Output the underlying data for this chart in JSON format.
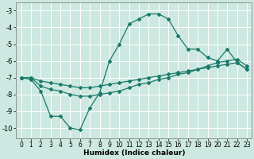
{
  "xlabel": "Humidex (Indice chaleur)",
  "background_color": "#cce8e0",
  "grid_color": "#ffffff",
  "line_color": "#1a7a6a",
  "xlim": [
    -0.5,
    23.5
  ],
  "ylim": [
    -10.6,
    -2.5
  ],
  "yticks": [
    -10,
    -9,
    -8,
    -7,
    -6,
    -5,
    -4,
    -3
  ],
  "xticks": [
    0,
    1,
    2,
    3,
    4,
    5,
    6,
    7,
    8,
    9,
    10,
    11,
    12,
    13,
    14,
    15,
    16,
    17,
    18,
    19,
    20,
    21,
    22,
    23
  ],
  "line1_x": [
    0,
    1,
    2,
    3,
    4,
    5,
    6,
    7,
    8,
    9,
    10,
    11,
    12,
    13,
    14,
    15,
    16,
    17,
    18,
    19,
    20,
    21,
    22,
    23
  ],
  "line1_y": [
    -7.0,
    -7.1,
    -7.8,
    -9.3,
    -9.3,
    -10.0,
    -10.1,
    -8.8,
    -7.9,
    -6.0,
    -5.0,
    -3.8,
    -3.5,
    -3.2,
    -3.2,
    -3.5,
    -4.5,
    -5.3,
    -5.3,
    -5.8,
    -6.0,
    -5.3,
    -6.1,
    -6.5
  ],
  "line2_x": [
    0,
    1,
    2,
    3,
    4,
    5,
    6,
    7,
    8,
    9,
    10,
    11,
    12,
    13,
    14,
    15,
    16,
    17,
    18,
    19,
    20,
    21,
    22,
    23
  ],
  "line2_y": [
    -7.0,
    -7.0,
    -7.2,
    -7.3,
    -7.4,
    -7.5,
    -7.6,
    -7.6,
    -7.5,
    -7.4,
    -7.3,
    -7.2,
    -7.1,
    -7.0,
    -6.9,
    -6.8,
    -6.7,
    -6.6,
    -6.5,
    -6.4,
    -6.3,
    -6.2,
    -6.1,
    -6.5
  ],
  "line3_x": [
    0,
    1,
    2,
    3,
    4,
    5,
    6,
    7,
    8,
    9,
    10,
    11,
    12,
    13,
    14,
    15,
    16,
    17,
    18,
    19,
    20,
    21,
    22,
    23
  ],
  "line3_y": [
    -7.0,
    -7.0,
    -7.5,
    -7.7,
    -7.8,
    -8.0,
    -8.1,
    -8.1,
    -8.0,
    -7.9,
    -7.8,
    -7.6,
    -7.4,
    -7.3,
    -7.1,
    -7.0,
    -6.8,
    -6.7,
    -6.5,
    -6.3,
    -6.1,
    -6.0,
    -5.9,
    -6.3
  ]
}
